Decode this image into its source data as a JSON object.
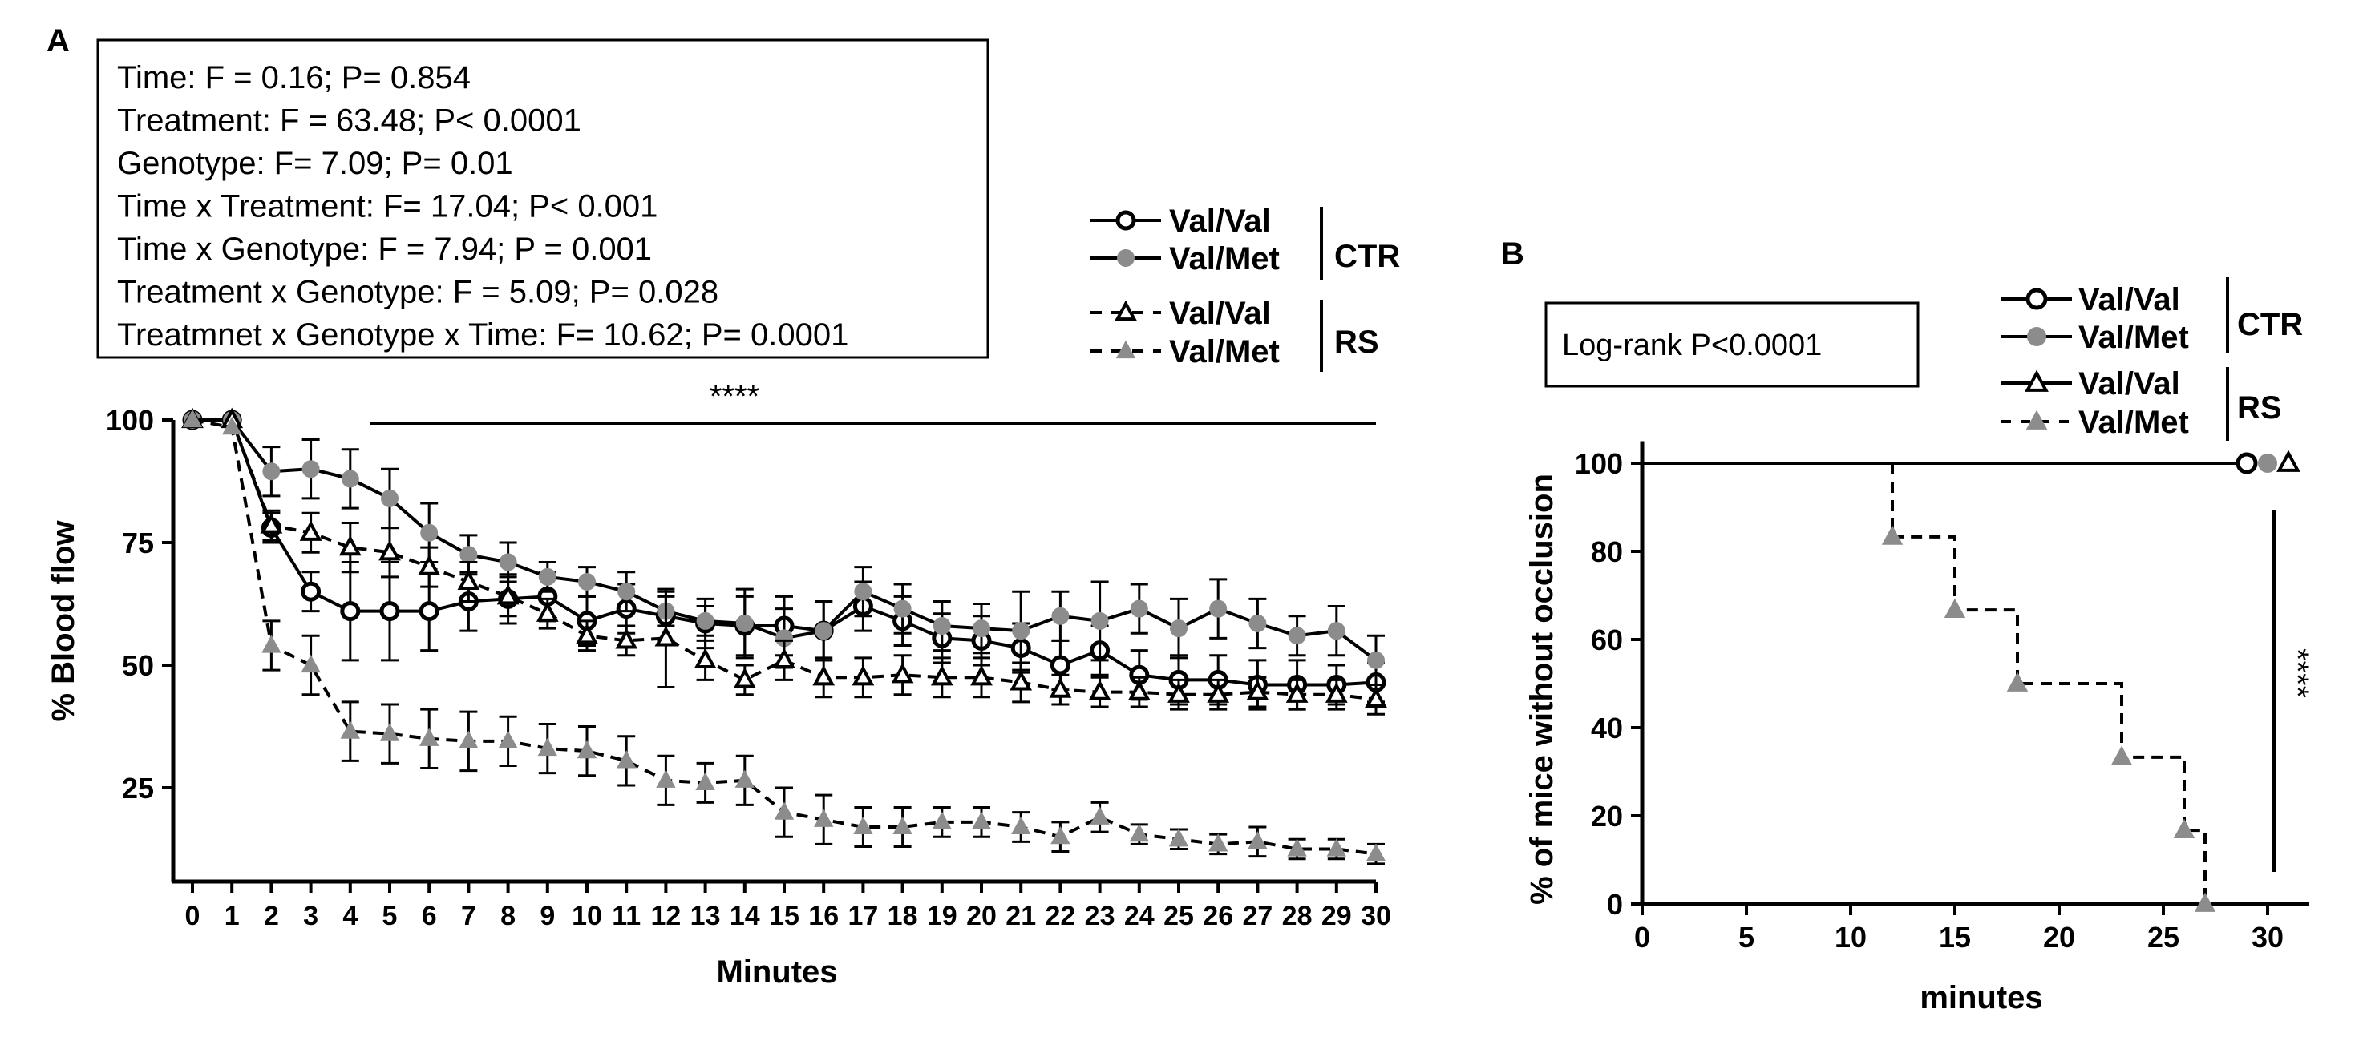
{
  "chart_data": [
    {
      "panel": "A",
      "type": "line",
      "xlabel": "Minutes",
      "ylabel": "% Blood flow",
      "xlim": [
        0,
        30
      ],
      "ylim": [
        10,
        100
      ],
      "xticks": [
        "0",
        "1",
        "2",
        "3",
        "4",
        "5",
        "6",
        "7",
        "8",
        "9",
        "10",
        "11",
        "12",
        "13",
        "14",
        "15",
        "16",
        "17",
        "18",
        "19",
        "20",
        "21",
        "22",
        "23",
        "24",
        "25",
        "26",
        "27",
        "28",
        "29",
        "30"
      ],
      "yticks": [
        "25",
        "50",
        "75",
        "100"
      ],
      "stats_box": [
        "Time: F = 0.16; P= 0.854",
        "Treatment: F = 63.48; P< 0.0001",
        "Genotype: F= 7.09; P= 0.01",
        "Time x Treatment: F= 17.04; P< 0.001",
        "Time x Genotype: F = 7.94; P = 0.001",
        "Treatment x Genotype: F = 5.09; P= 0.028",
        "Treatmnet x Genotype x Time: F= 10.62; P= 0.0001"
      ],
      "significance": "****",
      "significance_range": [
        4.5,
        30
      ],
      "x": [
        0,
        1,
        2,
        3,
        4,
        5,
        6,
        7,
        8,
        9,
        10,
        11,
        12,
        13,
        14,
        15,
        16,
        17,
        18,
        19,
        20,
        21,
        22,
        23,
        24,
        25,
        26,
        27,
        28,
        29,
        30
      ],
      "series": [
        {
          "name": "Val/Val",
          "group": "CTR",
          "marker": "circle-open",
          "line": "solid",
          "color": "#000000",
          "values": [
            100,
            100,
            78,
            65,
            61,
            61,
            61,
            63,
            63.5,
            64,
            59,
            61.5,
            60,
            58.5,
            58,
            58,
            57,
            62,
            59,
            55.5,
            55,
            53.5,
            50,
            53,
            48,
            47,
            47,
            46,
            46,
            46,
            46.5
          ],
          "errors": [
            0,
            0,
            3,
            4,
            10,
            10,
            8,
            6,
            5,
            5,
            5,
            5,
            5,
            5,
            6,
            6,
            6,
            5,
            5,
            5,
            5,
            5,
            5,
            5,
            5,
            5,
            5,
            5,
            5,
            4,
            4
          ]
        },
        {
          "name": "Val/Met",
          "group": "CTR",
          "marker": "circle-filled",
          "line": "solid",
          "color": "#8c8c8c",
          "values": [
            100,
            100,
            89.5,
            90,
            88,
            84,
            77,
            72.5,
            71,
            68,
            67,
            65,
            61,
            59,
            58.5,
            55.5,
            57,
            65,
            61.5,
            58,
            57.5,
            57,
            60,
            59,
            61.5,
            57.5,
            61.5,
            58.5,
            56,
            57,
            51
          ],
          "errors": [
            0,
            0,
            5,
            6,
            6,
            6,
            6,
            4,
            4,
            3,
            3,
            4,
            3,
            3,
            7,
            6,
            6,
            5,
            5,
            5,
            5,
            8,
            5,
            8,
            5,
            6,
            6,
            5,
            4,
            5,
            5
          ]
        },
        {
          "name": "Val/Val",
          "group": "RS",
          "marker": "triangle-open",
          "line": "dashed",
          "color": "#000000",
          "values": [
            100,
            100,
            78.5,
            77,
            74,
            73,
            70,
            67,
            64,
            60.5,
            56,
            55,
            55.5,
            51,
            47,
            51,
            47.5,
            47.5,
            48,
            47.5,
            47.5,
            46.5,
            45,
            44.5,
            44.5,
            44,
            44,
            44.5,
            44,
            44,
            43
          ],
          "errors": [
            0,
            0,
            3,
            4,
            5,
            5,
            4,
            4,
            4,
            3,
            3,
            3,
            10,
            4,
            3,
            4,
            4,
            4,
            4,
            4,
            4,
            4,
            3,
            3,
            3,
            3,
            3,
            3,
            3,
            3,
            3
          ]
        },
        {
          "name": "Val/Met",
          "group": "RS",
          "marker": "triangle-filled",
          "line": "dashed",
          "color": "#8c8c8c",
          "values": [
            100,
            98.5,
            54,
            50,
            36.5,
            36,
            35,
            34.5,
            34.5,
            33,
            32.5,
            30.5,
            26.5,
            26,
            26.5,
            20,
            18.5,
            17,
            17,
            18,
            18,
            17,
            15,
            19,
            15.5,
            14.5,
            13.5,
            14,
            12.5,
            12.5,
            11.5
          ],
          "errors": [
            0,
            0,
            5,
            6,
            6,
            6,
            6,
            6,
            5,
            5,
            5,
            5,
            5,
            4,
            5,
            5,
            5,
            4,
            4,
            3,
            3,
            3,
            3,
            3,
            2,
            2,
            2,
            3,
            2,
            2,
            2
          ]
        }
      ],
      "legend": {
        "groups": [
          {
            "label": "CTR",
            "entries": [
              "Val/Val",
              "Val/Met"
            ]
          },
          {
            "label": "RS",
            "entries": [
              "Val/Val",
              "Val/Met"
            ]
          }
        ]
      }
    },
    {
      "panel": "B",
      "type": "line",
      "subtype": "survival-step",
      "xlabel": "minutes",
      "ylabel": "% of mice without occlusion",
      "xlim": [
        0,
        32
      ],
      "ylim": [
        0,
        100
      ],
      "xticks": [
        "0",
        "5",
        "10",
        "15",
        "20",
        "25",
        "30"
      ],
      "yticks": [
        "0",
        "20",
        "40",
        "60",
        "80",
        "100"
      ],
      "annotation": "Log-rank P<0.0001",
      "significance": "****",
      "series": [
        {
          "name": "Val/Val",
          "group": "CTR",
          "marker": "circle-open",
          "line": "solid",
          "color": "#000000",
          "steps": [
            [
              0,
              100
            ],
            [
              29,
              100
            ]
          ],
          "markers": [
            [
              29,
              100
            ]
          ]
        },
        {
          "name": "Val/Met",
          "group": "CTR",
          "marker": "circle-filled",
          "line": "solid",
          "color": "#8c8c8c",
          "steps": [
            [
              0,
              100
            ],
            [
              30,
              100
            ]
          ],
          "markers": [
            [
              30,
              100
            ]
          ]
        },
        {
          "name": "Val/Val",
          "group": "RS",
          "marker": "triangle-open",
          "line": "solid",
          "color": "#000000",
          "steps": [
            [
              0,
              100
            ],
            [
              31,
              100
            ]
          ],
          "markers": [
            [
              31,
              100
            ]
          ]
        },
        {
          "name": "Val/Met",
          "group": "RS",
          "marker": "triangle-filled",
          "line": "dashed",
          "color": "#8c8c8c",
          "steps": [
            [
              12,
              100
            ],
            [
              12,
              83.3
            ],
            [
              15,
              83.3
            ],
            [
              15,
              66.7
            ],
            [
              18,
              66.7
            ],
            [
              18,
              50
            ],
            [
              23,
              50
            ],
            [
              23,
              33.3
            ],
            [
              26,
              33.3
            ],
            [
              26,
              16.7
            ],
            [
              27,
              16.7
            ],
            [
              27,
              0
            ]
          ],
          "markers": [
            [
              12,
              83.3
            ],
            [
              15,
              66.7
            ],
            [
              18,
              50
            ],
            [
              23,
              33.3
            ],
            [
              26,
              16.7
            ],
            [
              27,
              0
            ]
          ]
        }
      ],
      "legend": {
        "groups": [
          {
            "label": "CTR",
            "entries": [
              "Val/Val",
              "Val/Met"
            ]
          },
          {
            "label": "RS",
            "entries": [
              "Val/Val",
              "Val/Met"
            ]
          }
        ]
      }
    }
  ]
}
